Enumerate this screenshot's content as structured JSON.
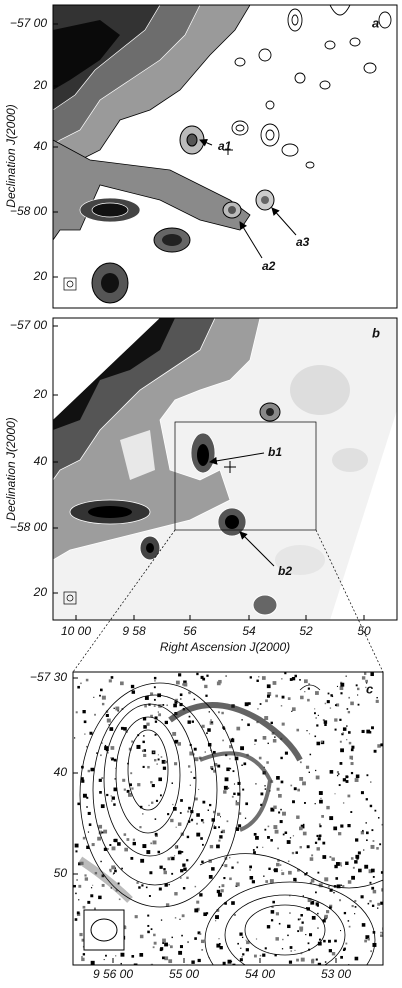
{
  "panels": [
    {
      "label": "a",
      "y_axis_label": "Declination J(2000)",
      "y_ticks": [
        "−57 00",
        "20",
        "40",
        "−58 00",
        "20"
      ],
      "annotations": [
        "a1",
        "a2",
        "a3"
      ]
    },
    {
      "label": "b",
      "y_axis_label": "Declination J(2000)",
      "y_ticks": [
        "−57 00",
        "20",
        "40",
        "−58 00",
        "20"
      ],
      "x_ticks": [
        "10 00",
        "9 58",
        "56",
        "54",
        "52",
        "50"
      ],
      "x_axis_label": "Right Ascension J(2000)",
      "annotations": [
        "b1",
        "b2"
      ]
    },
    {
      "label": "c",
      "y_ticks": [
        "−57 30",
        "40",
        "50"
      ],
      "x_ticks": [
        "9 56 00",
        "55 00",
        "54 00",
        "53 00"
      ]
    }
  ]
}
